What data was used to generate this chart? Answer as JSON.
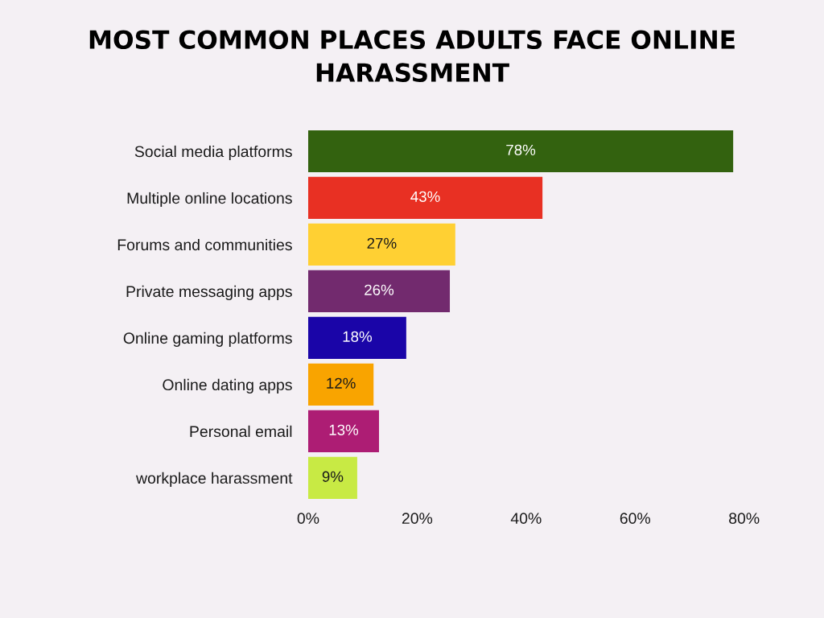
{
  "chart_data": {
    "type": "bar",
    "orientation": "horizontal",
    "title": "MOST COMMON PLACES ADULTS FACE ONLINE HARASSMENT",
    "categories": [
      "Social media platforms",
      "Multiple online locations",
      "Forums and communities",
      "Private messaging apps",
      "Online gaming platforms",
      "Online dating apps",
      "Personal email",
      "workplace harassment"
    ],
    "values": [
      78,
      43,
      27,
      26,
      18,
      12,
      13,
      9
    ],
    "colors": [
      "#33620f",
      "#e83023",
      "#ffd033",
      "#722a6e",
      "#1a05a8",
      "#f9a400",
      "#ad1d74",
      "#c8ea44"
    ],
    "value_labels": [
      "78%",
      "43%",
      "27%",
      "26%",
      "18%",
      "12%",
      "13%",
      "9%"
    ],
    "xlim": [
      0,
      80
    ],
    "xticks": [
      {
        "value": 0,
        "label": "0%"
      },
      {
        "value": 20,
        "label": "20%"
      },
      {
        "value": 40,
        "label": "40%"
      },
      {
        "value": 60,
        "label": "60%"
      },
      {
        "value": 80,
        "label": "80%"
      }
    ]
  }
}
